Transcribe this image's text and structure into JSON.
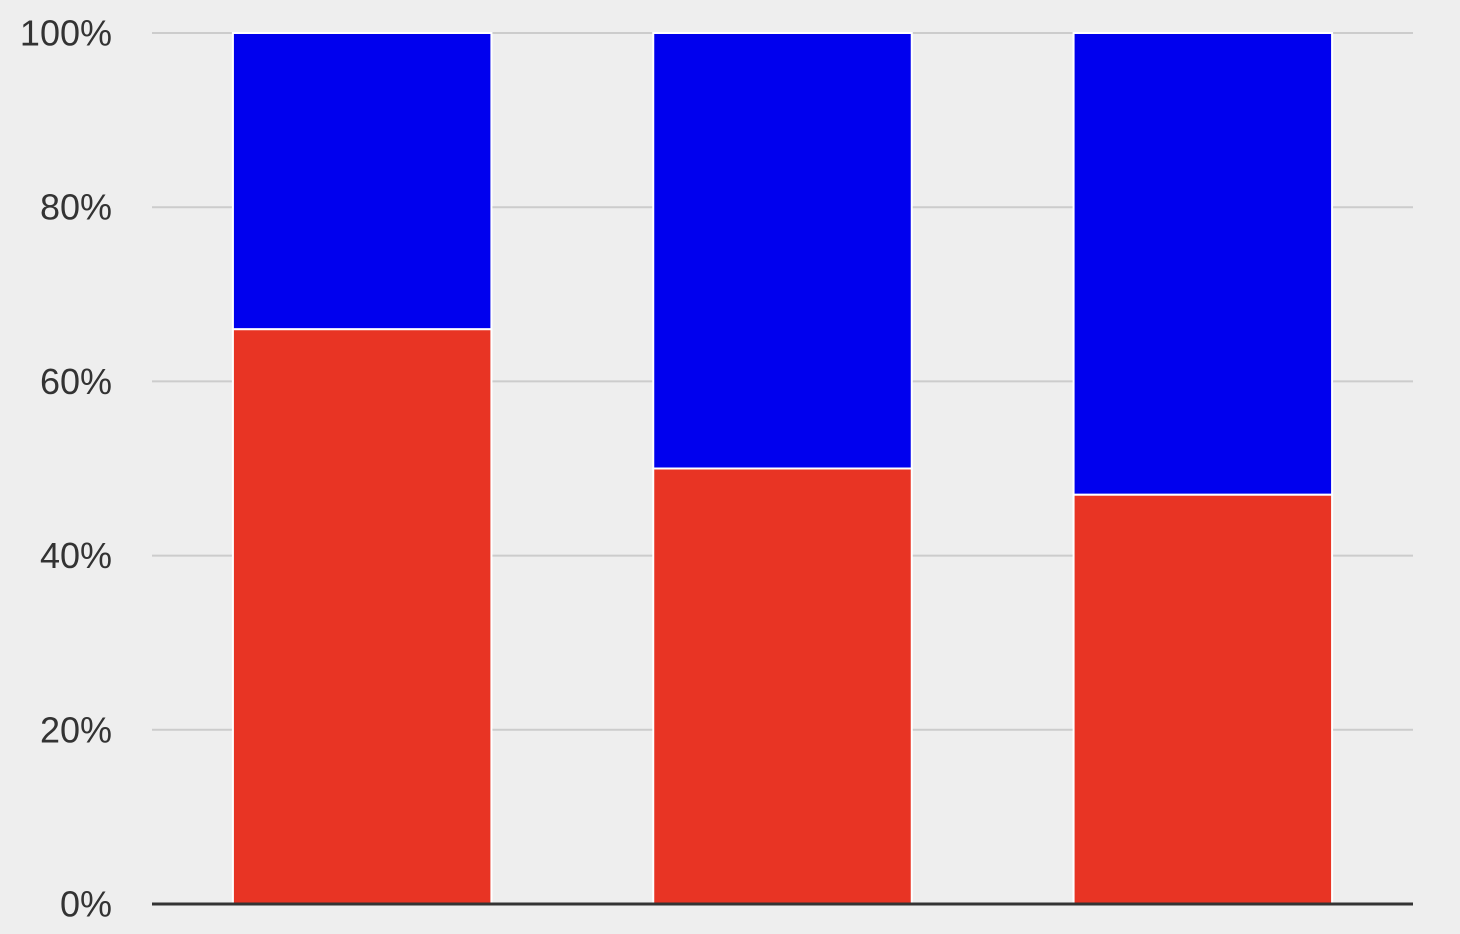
{
  "chart_data": {
    "type": "bar",
    "stacked": true,
    "title": "",
    "xlabel": "",
    "ylabel": "",
    "ylim": [
      0,
      100
    ],
    "y_tick_suffix": "%",
    "y_ticks": [
      0,
      20,
      40,
      60,
      80,
      100
    ],
    "grid": true,
    "categories": [
      "",
      "",
      ""
    ],
    "series": [
      {
        "values": [
          66,
          50,
          47
        ],
        "color": "#e83424"
      },
      {
        "values": [
          34,
          50,
          53
        ],
        "color": "#0000ee"
      }
    ]
  }
}
